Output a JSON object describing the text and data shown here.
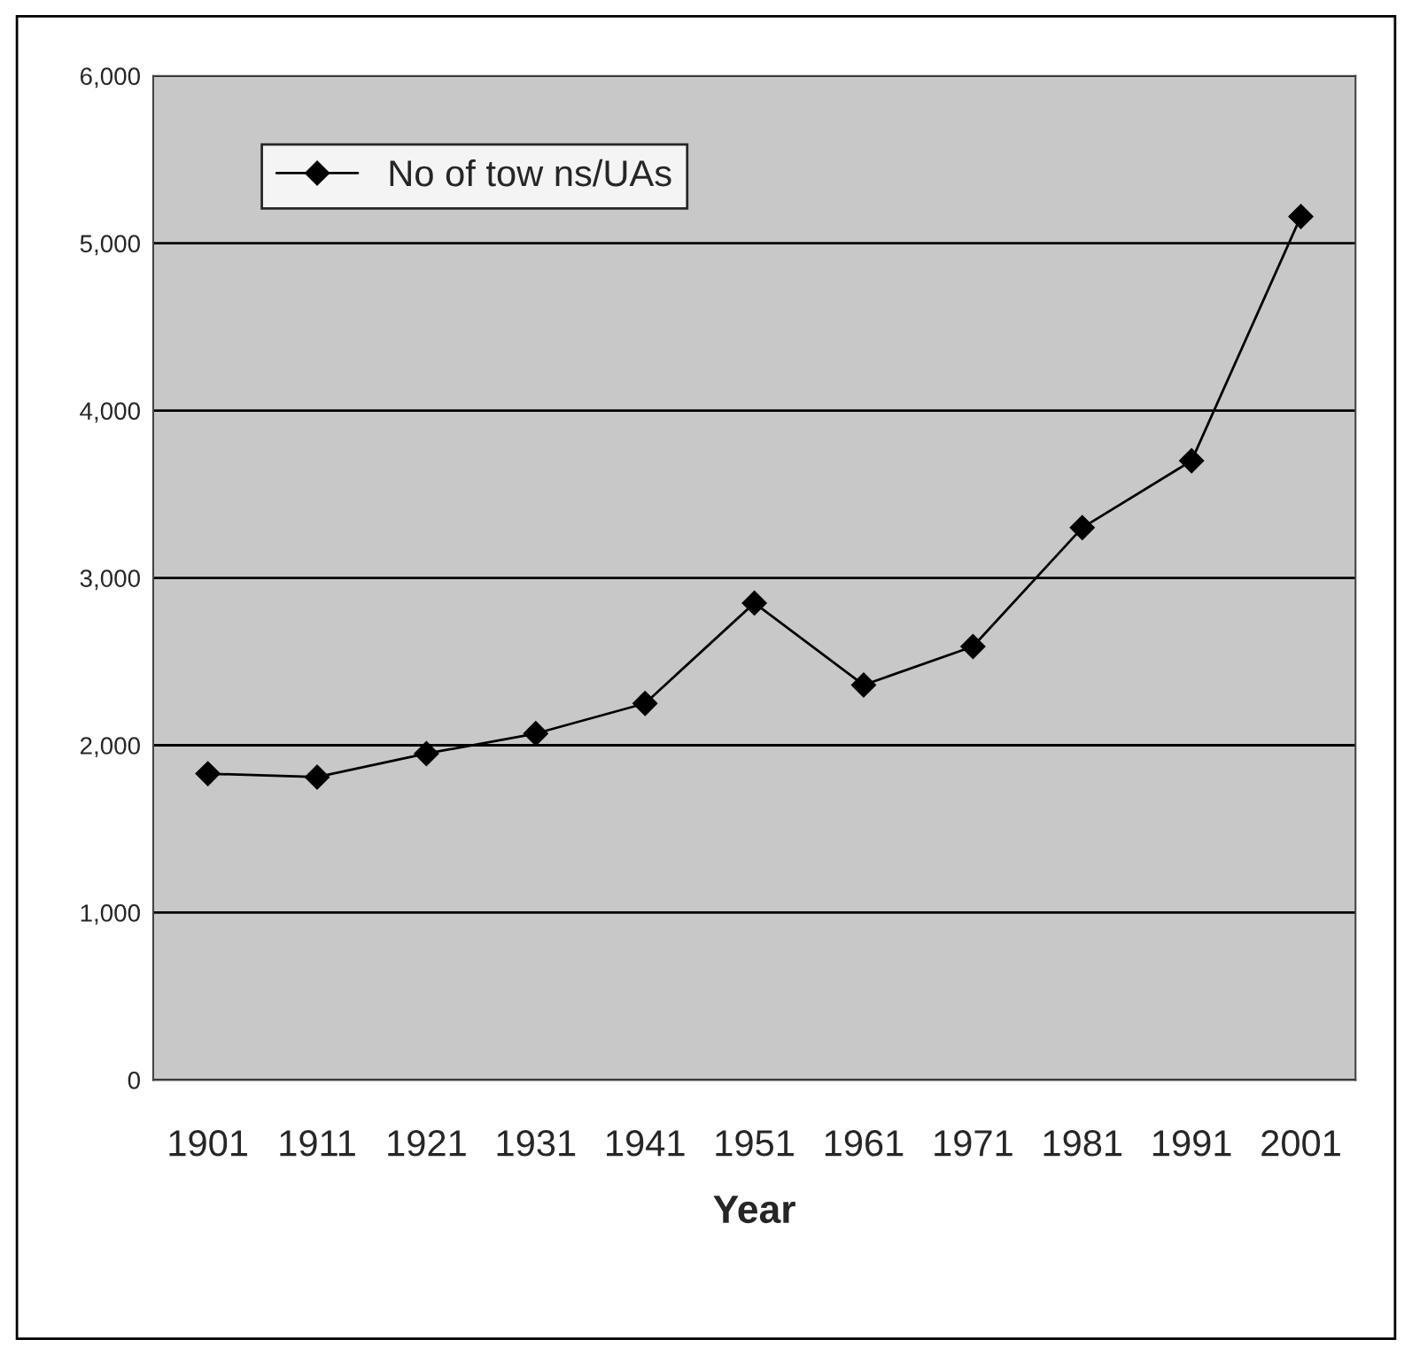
{
  "chart_data": {
    "type": "line",
    "xlabel": "Year",
    "categories": [
      "1901",
      "1911",
      "1921",
      "1931",
      "1941",
      "1951",
      "1961",
      "1971",
      "1981",
      "1991",
      "2001"
    ],
    "series": [
      {
        "name": "No of tow ns/UAs",
        "color": "#000000",
        "values": [
          1830,
          1810,
          1950,
          2070,
          2250,
          2850,
          2360,
          2590,
          3300,
          3700,
          5160
        ]
      }
    ],
    "ylim": [
      0,
      6000
    ],
    "yticks": [
      0,
      {
        "value": 1000,
        "label": "1,000"
      },
      {
        "value": 2000,
        "label": "2,000"
      },
      {
        "value": 3000,
        "label": "3,000"
      },
      {
        "value": 4000,
        "label": "4,000"
      },
      {
        "value": 5000,
        "label": "5,000"
      },
      {
        "value": 6000,
        "label": "6,000"
      }
    ],
    "grid": "y",
    "legend": "top left",
    "marker": "diamond",
    "line_style": "solid"
  }
}
